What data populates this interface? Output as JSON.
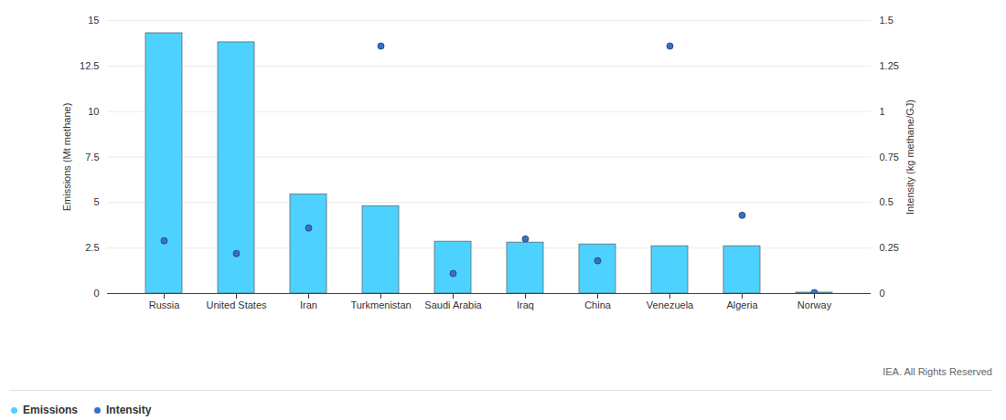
{
  "chart_data": {
    "type": "bar",
    "categories": [
      "Russia",
      "United States",
      "Iran",
      "Turkmenistan",
      "Saudi Arabia",
      "Iraq",
      "China",
      "Venezuela",
      "Algeria",
      "Norway"
    ],
    "series": [
      {
        "name": "Emissions",
        "type": "bar",
        "color": "#4dd2ff",
        "values": [
          14.3,
          13.8,
          5.45,
          4.8,
          2.85,
          2.8,
          2.7,
          2.6,
          2.6,
          0.05
        ]
      },
      {
        "name": "Intensity",
        "type": "scatter",
        "axis": "y2",
        "marker": "circle",
        "color": "#3a6fc9",
        "values": [
          0.29,
          0.22,
          0.36,
          1.36,
          0.11,
          0.3,
          0.18,
          1.36,
          0.43,
          0.005
        ]
      }
    ],
    "ylabel": "Emissions (Mt methane)",
    "y2label": "Intensity (kg methane/GJ)",
    "ylim": [
      0,
      15
    ],
    "yticks": [
      0,
      2.5,
      5,
      7.5,
      10,
      12.5,
      15
    ],
    "y2lim": [
      0,
      1.5
    ],
    "y2ticks": [
      0,
      0.25,
      0.5,
      0.75,
      1,
      1.25,
      1.5
    ],
    "grid": true,
    "legend": "bottom",
    "source": "IEA. All Rights Reserved"
  }
}
